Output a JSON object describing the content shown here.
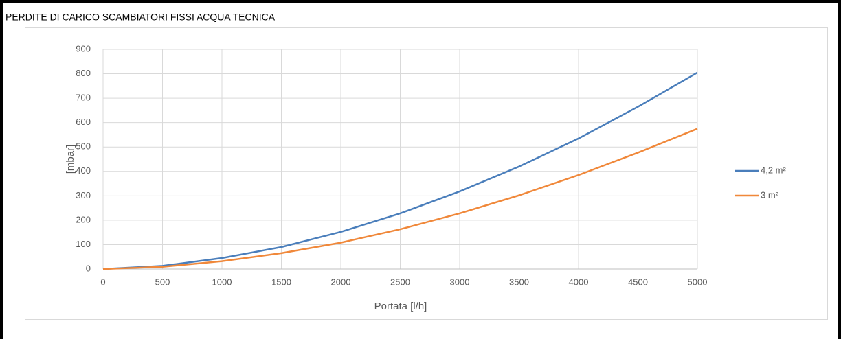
{
  "chart_data": {
    "type": "line",
    "title": "PERDITE DI CARICO SCAMBIATORI FISSI ACQUA TECNICA",
    "x_label": "Portata [l/h]",
    "y_label": "[mbar]",
    "x": [
      0,
      500,
      1000,
      1500,
      2000,
      2500,
      3000,
      3500,
      4000,
      4500,
      5000
    ],
    "series": [
      {
        "name": "4,2 m²",
        "color": "#4a7ebb",
        "values": [
          0,
          13,
          45,
          90,
          152,
          228,
          318,
          420,
          535,
          665,
          805
        ]
      },
      {
        "name": "3 m²",
        "color": "#f0883a",
        "values": [
          0,
          9,
          32,
          65,
          108,
          163,
          228,
          302,
          385,
          477,
          575
        ]
      }
    ],
    "xlim": [
      0,
      5000
    ],
    "xticks": [
      0,
      500,
      1000,
      1500,
      2000,
      2500,
      3000,
      3500,
      4000,
      4500,
      5000
    ],
    "ylim": [
      0,
      900
    ],
    "yticks": [
      0,
      100,
      200,
      300,
      400,
      500,
      600,
      700,
      800,
      900
    ],
    "grid": true,
    "legend": "right"
  }
}
